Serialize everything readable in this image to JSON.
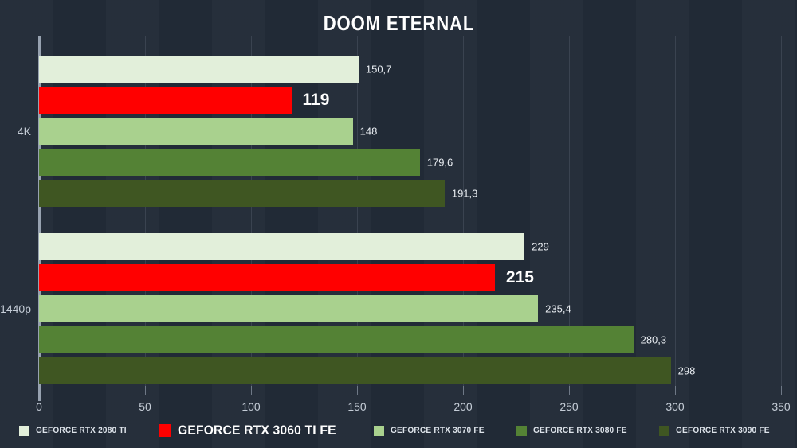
{
  "title": "DOOM ETERNAL",
  "chart_data": {
    "type": "bar",
    "orientation": "horizontal",
    "title": "DOOM ETERNAL",
    "categories": [
      "4K",
      "1440p"
    ],
    "series": [
      {
        "name": "GEFORCE RTX 2080 TI",
        "color": "#e2efda",
        "values": [
          150.7,
          229
        ],
        "value_labels": [
          "150,7",
          "229"
        ],
        "emphasized": false
      },
      {
        "name": "GEFORCE RTX 3060 TI FE",
        "color": "#ff0000",
        "values": [
          119,
          215
        ],
        "value_labels": [
          "119",
          "215"
        ],
        "emphasized": true
      },
      {
        "name": "GEFORCE RTX 3070 FE",
        "color": "#a9d18e",
        "values": [
          148,
          235.4
        ],
        "value_labels": [
          "148",
          "235,4"
        ],
        "emphasized": false
      },
      {
        "name": "GEFORCE RTX 3080 FE",
        "color": "#548235",
        "values": [
          179.6,
          280.3
        ],
        "value_labels": [
          "179,6",
          "280,3"
        ],
        "emphasized": false
      },
      {
        "name": "GEFORCE RTX 3090 FE",
        "color": "#3f5622",
        "values": [
          191.3,
          298
        ],
        "value_labels": [
          "191,3",
          "298"
        ],
        "emphasized": false
      }
    ],
    "xlim": [
      0,
      350
    ],
    "x_ticks": [
      "0",
      "50",
      "100",
      "150",
      "200",
      "250",
      "300",
      "350"
    ],
    "grid": true,
    "legend_position": "bottom",
    "colors": {
      "background": "#212a36",
      "axis_line": "#97a2b0",
      "tick_label": "#c5cdd7",
      "value_label": "#e9edf2",
      "emphasized_value_label": "#ffffff",
      "title": "#ffffff"
    }
  }
}
